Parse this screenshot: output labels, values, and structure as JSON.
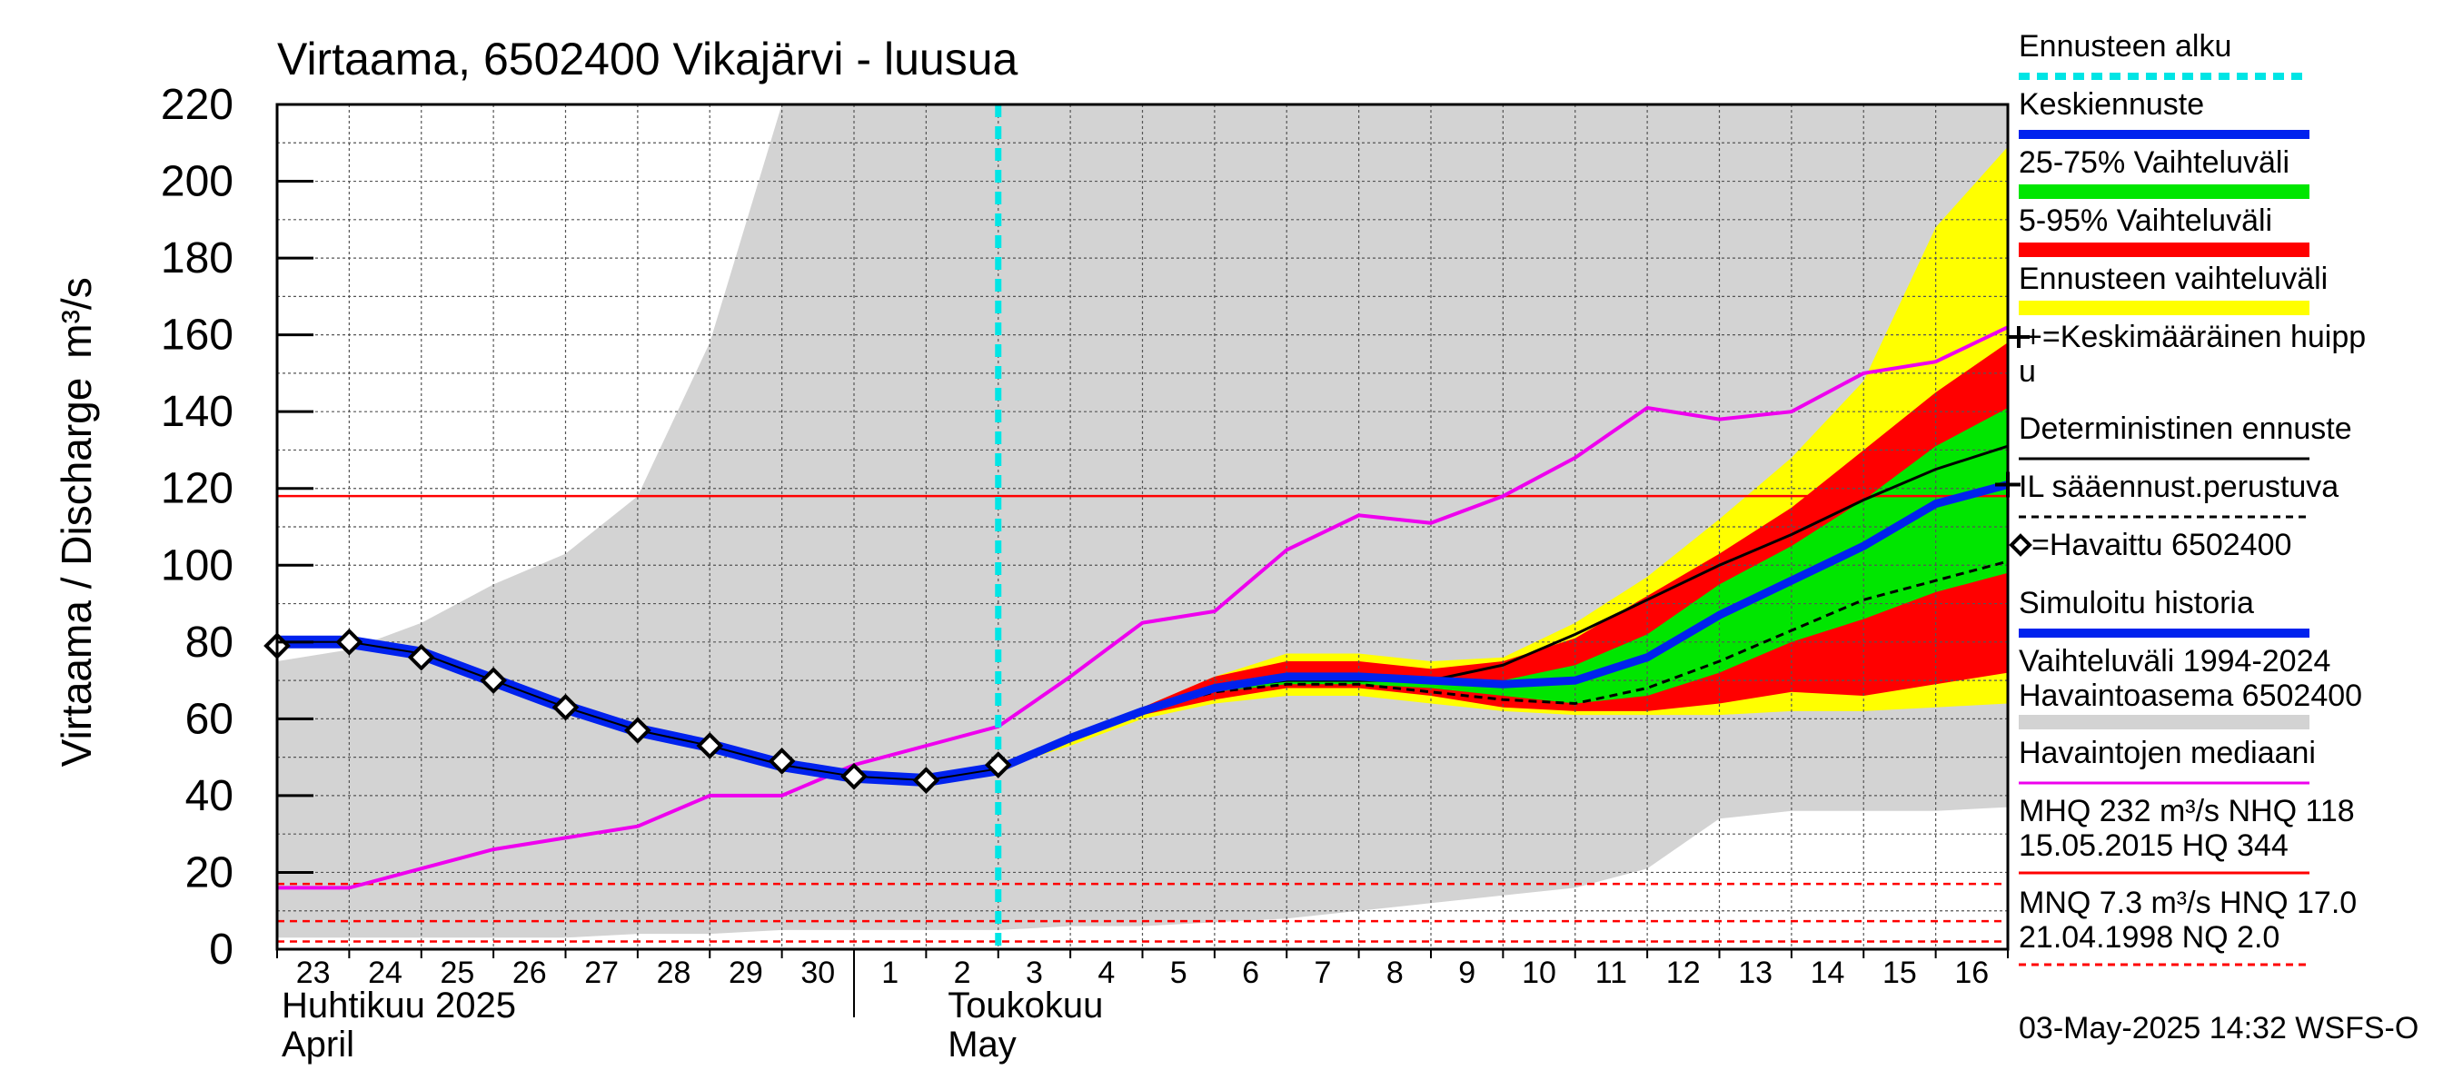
{
  "chart_data": {
    "type": "area",
    "title": "Virtaama, 6502400 Vikajärvi - luusua",
    "ylabel": "Virtaama / Discharge",
    "yunit": "m³/s",
    "ylim": [
      0,
      220
    ],
    "yticks": [
      0,
      20,
      40,
      60,
      80,
      100,
      120,
      140,
      160,
      180,
      200,
      220
    ],
    "x_start": "2025-04-23",
    "x_end": "2025-05-17",
    "x_ticks": [
      {
        "d": 0,
        "label": "23"
      },
      {
        "d": 1,
        "label": "24"
      },
      {
        "d": 2,
        "label": "25"
      },
      {
        "d": 3,
        "label": "26"
      },
      {
        "d": 4,
        "label": "27"
      },
      {
        "d": 5,
        "label": "28"
      },
      {
        "d": 6,
        "label": "29"
      },
      {
        "d": 7,
        "label": "30"
      },
      {
        "d": 8,
        "label": "1"
      },
      {
        "d": 9,
        "label": "2"
      },
      {
        "d": 10,
        "label": "3"
      },
      {
        "d": 11,
        "label": "4"
      },
      {
        "d": 12,
        "label": "5"
      },
      {
        "d": 13,
        "label": "6"
      },
      {
        "d": 14,
        "label": "7"
      },
      {
        "d": 15,
        "label": "8"
      },
      {
        "d": 16,
        "label": "9"
      },
      {
        "d": 17,
        "label": "10"
      },
      {
        "d": 18,
        "label": "11"
      },
      {
        "d": 19,
        "label": "12"
      },
      {
        "d": 20,
        "label": "13"
      },
      {
        "d": 21,
        "label": "14"
      },
      {
        "d": 22,
        "label": "15"
      },
      {
        "d": 23,
        "label": "16"
      }
    ],
    "x_tick_offset": 0.5,
    "month_labels": {
      "april_fi": "Huhtikuu  2025",
      "april_en": "April",
      "may_fi": "Toukokuu",
      "may_en": "May"
    },
    "forecast_start": 10,
    "history_band": {
      "x": [
        0,
        1,
        2,
        3,
        4,
        5,
        6,
        7,
        8,
        9,
        10,
        11,
        12,
        13,
        14,
        15,
        16,
        17,
        18,
        19,
        20,
        21,
        22,
        23,
        24
      ],
      "upper": [
        75,
        78,
        85,
        95,
        103,
        118,
        158,
        220,
        220,
        220,
        220,
        220,
        220,
        220,
        220,
        220,
        220,
        220,
        220,
        220,
        220,
        220,
        220,
        220,
        220
      ],
      "lower": [
        3,
        3,
        3,
        3,
        3,
        4,
        4,
        5,
        5,
        5,
        5,
        6,
        6,
        7,
        8,
        10,
        12,
        14,
        16,
        21,
        34,
        36,
        36,
        36,
        37
      ]
    },
    "forecast_x": [
      10,
      11,
      12,
      13,
      14,
      15,
      16,
      17,
      18,
      19,
      20,
      21,
      22,
      23,
      24
    ],
    "ensemble_range": {
      "upper": [
        47,
        54,
        63,
        71,
        77,
        77,
        75,
        76,
        85,
        97,
        112,
        128,
        148,
        188,
        209
      ],
      "lower": [
        47,
        53,
        60,
        64,
        66,
        66,
        64,
        62,
        61,
        61,
        61,
        62,
        62,
        63,
        64
      ]
    },
    "p5_95": {
      "upper": [
        47,
        54,
        63,
        71,
        75,
        75,
        73,
        75,
        81,
        92,
        103,
        115,
        130,
        145,
        158
      ],
      "lower": [
        47,
        54,
        61,
        65,
        68,
        68,
        66,
        63,
        62,
        62,
        64,
        67,
        66,
        69,
        72
      ]
    },
    "p25_75": {
      "upper": [
        47,
        54,
        62,
        69,
        72,
        72,
        70,
        70,
        74,
        82,
        95,
        105,
        117,
        131,
        141
      ],
      "lower": [
        47,
        54,
        62,
        67,
        69,
        69,
        68,
        66,
        64,
        66,
        72,
        80,
        86,
        93,
        98
      ]
    },
    "median_forecast": [
      47,
      55,
      62,
      68,
      71,
      71,
      70,
      69,
      70,
      76,
      87,
      96,
      105,
      116,
      121
    ],
    "deterministic": [
      47,
      55,
      62,
      68,
      70,
      70,
      70,
      74,
      82,
      91,
      100,
      108,
      117,
      125,
      131
    ],
    "il_forecast": [
      47,
      55,
      62,
      67,
      69,
      69,
      67,
      65,
      64,
      68,
      75,
      83,
      91,
      96,
      101
    ],
    "observed": {
      "x": [
        0,
        1,
        2,
        3,
        4,
        5,
        6,
        7,
        8,
        9,
        10
      ],
      "values": [
        79,
        80,
        76,
        70,
        63,
        57,
        53,
        49,
        45,
        44,
        48
      ]
    },
    "simulated_history": {
      "x": [
        0,
        1,
        2,
        3,
        4,
        5,
        6,
        7,
        8,
        9,
        10
      ],
      "values": [
        80,
        80,
        77,
        70,
        63,
        57,
        53,
        48,
        45,
        44,
        47
      ]
    },
    "median_obs": {
      "x": [
        0,
        1,
        2,
        3,
        4,
        5,
        6,
        7,
        8,
        9,
        10,
        11,
        12,
        13,
        14,
        15,
        16,
        17,
        18,
        19,
        20,
        21,
        22,
        23,
        24
      ],
      "values": [
        16,
        16,
        21,
        26,
        29,
        32,
        40,
        40,
        48,
        53,
        58,
        71,
        85,
        88,
        104,
        113,
        111,
        118,
        128,
        141,
        138,
        140,
        150,
        153,
        162
      ]
    },
    "mean_peak": {
      "x": 24,
      "value": 121
    },
    "reference_lines": {
      "NHQ": 118,
      "HNQ": 17.0,
      "MNQ": 7.3,
      "NQ": 2.0
    },
    "legend": [
      {
        "key": "forecast_start",
        "label": "Ennusteen alku",
        "color": "#00e5e5",
        "style": "dash-thick"
      },
      {
        "key": "mean",
        "label": "Keskiennuste",
        "color": "#0022ee",
        "style": "thick"
      },
      {
        "key": "p25_75",
        "label": "25-75% Vaihteluväli",
        "color": "#00e600",
        "style": "band"
      },
      {
        "key": "p5_95",
        "label": "5-95% Vaihteluväli",
        "color": "#ff0000",
        "style": "band"
      },
      {
        "key": "range",
        "label": "Ennusteen vaihteluväli",
        "color": "#ffff00",
        "style": "band"
      },
      {
        "key": "peak",
        "label": "+=Keskimääräinen huipp",
        "label2": "u",
        "color": "#000000",
        "style": "none"
      },
      {
        "key": "det",
        "label": "Deterministinen ennuste",
        "color": "#000000",
        "style": "line"
      },
      {
        "key": "il",
        "label": "IL sääennust.perustuva",
        "color": "#000000",
        "style": "dash"
      },
      {
        "key": "obs",
        "label": "=Havaittu 6502400",
        "color": "#000000",
        "style": "none"
      },
      {
        "key": "sim",
        "label": "Simuloitu historia",
        "color": "#0022ee",
        "style": "thick"
      },
      {
        "key": "hist",
        "label": "Vaihteluväli 1994-2024",
        "label2": " Havaintoasema 6502400",
        "color": "#d3d3d3",
        "style": "band"
      },
      {
        "key": "medobs",
        "label": "Havaintojen mediaani",
        "color": "#ee00ee",
        "style": "line"
      },
      {
        "key": "mhq",
        "label": "MHQ  232 m³/s NHQ  118",
        "label2": "15.05.2015 HQ  344",
        "color": "#ff0000",
        "style": "line"
      },
      {
        "key": "mnq",
        "label": "MNQ  7.3 m³/s HNQ 17.0",
        "label2": "21.04.1998 NQ  2.0",
        "color": "#ff0000",
        "style": "dash"
      }
    ],
    "footer": "03-May-2025 14:32 WSFS-O"
  }
}
